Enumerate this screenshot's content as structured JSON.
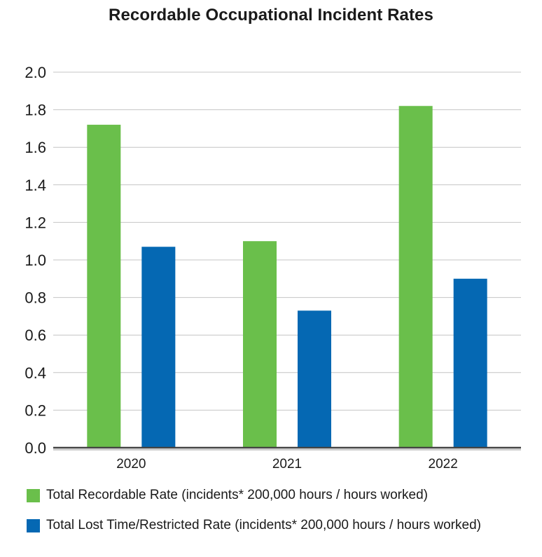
{
  "chart_data": {
    "type": "bar",
    "title": "Recordable Occupational Incident Rates",
    "xlabel": "",
    "ylabel": "",
    "categories": [
      "2020",
      "2021",
      "2022"
    ],
    "series": [
      {
        "name": "Total Recordable Rate (incidents* 200,000 hours / hours worked)",
        "color": "#6abf4b",
        "values": [
          1.72,
          1.1,
          1.82
        ]
      },
      {
        "name": "Total Lost Time/Restricted Rate (incidents* 200,000 hours / hours worked)",
        "color": "#0568b3",
        "values": [
          1.07,
          0.73,
          0.9
        ]
      }
    ],
    "ylim": [
      0,
      2.0
    ],
    "yticks": [
      "0.0",
      "0.2",
      "0.4",
      "0.6",
      "0.8",
      "1.0",
      "1.2",
      "1.4",
      "1.6",
      "1.8",
      "2.0"
    ],
    "grid": true,
    "legend_position": "bottom"
  }
}
